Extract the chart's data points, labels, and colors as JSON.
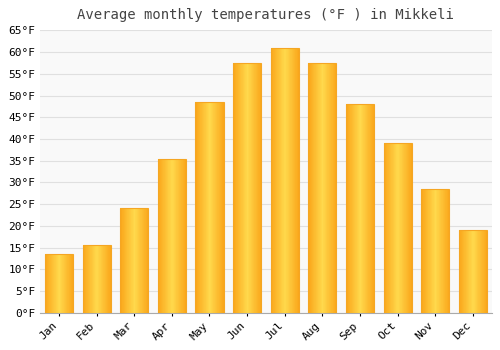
{
  "title": "Average monthly temperatures (°F ) in Mikkeli",
  "months": [
    "Jan",
    "Feb",
    "Mar",
    "Apr",
    "May",
    "Jun",
    "Jul",
    "Aug",
    "Sep",
    "Oct",
    "Nov",
    "Dec"
  ],
  "values": [
    13.5,
    15.5,
    24.0,
    35.5,
    48.5,
    57.5,
    61.0,
    57.5,
    48.0,
    39.0,
    28.5,
    19.0
  ],
  "bar_color_main": "#FFC125",
  "bar_color_edge": "#F5A623",
  "bar_color_light": "#FFD966",
  "ylim": [
    0,
    65
  ],
  "yticks": [
    0,
    5,
    10,
    15,
    20,
    25,
    30,
    35,
    40,
    45,
    50,
    55,
    60,
    65
  ],
  "background_color": "#ffffff",
  "plot_bg_color": "#f9f9f9",
  "grid_color": "#e0e0e0",
  "title_fontsize": 10,
  "tick_fontsize": 8,
  "bar_width": 0.75
}
